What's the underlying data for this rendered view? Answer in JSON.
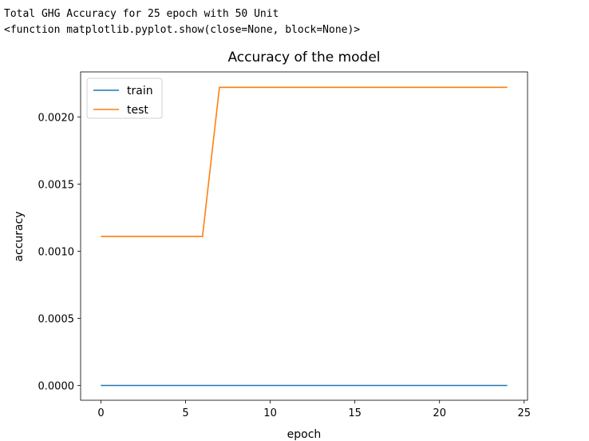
{
  "console": {
    "line1": "Total GHG Accuracy for 25 epoch with 50 Unit",
    "line2": "<function matplotlib.pyplot.show(close=None, block=None)>"
  },
  "chart_data": {
    "type": "line",
    "title": "Accuracy of the model",
    "xlabel": "epoch",
    "ylabel": "accuracy",
    "xlim": [
      -1.2,
      25.2
    ],
    "ylim": [
      -0.00011,
      0.002335
    ],
    "xticks": [
      0,
      5,
      10,
      15,
      20,
      25
    ],
    "xtick_labels": [
      "0",
      "5",
      "10",
      "15",
      "20",
      "25"
    ],
    "yticks": [
      0.0,
      0.0005,
      0.001,
      0.0015,
      0.002
    ],
    "ytick_labels": [
      "0.0000",
      "0.0005",
      "0.0010",
      "0.0015",
      "0.0020"
    ],
    "grid": false,
    "legend": "upper-left",
    "x": [
      0,
      1,
      2,
      3,
      4,
      5,
      6,
      7,
      8,
      9,
      10,
      11,
      12,
      13,
      14,
      15,
      16,
      17,
      18,
      19,
      20,
      21,
      22,
      23,
      24
    ],
    "series": [
      {
        "name": "train",
        "color": "#1f77b4",
        "values": [
          0,
          0,
          0,
          0,
          0,
          0,
          0,
          0,
          0,
          0,
          0,
          0,
          0,
          0,
          0,
          0,
          0,
          0,
          0,
          0,
          0,
          0,
          0,
          0,
          0
        ]
      },
      {
        "name": "test",
        "color": "#ff7f0e",
        "values": [
          0.00111,
          0.00111,
          0.00111,
          0.00111,
          0.00111,
          0.00111,
          0.00111,
          0.00222,
          0.00222,
          0.00222,
          0.00222,
          0.00222,
          0.00222,
          0.00222,
          0.00222,
          0.00222,
          0.00222,
          0.00222,
          0.00222,
          0.00222,
          0.00222,
          0.00222,
          0.00222,
          0.00222,
          0.00222
        ]
      }
    ]
  }
}
